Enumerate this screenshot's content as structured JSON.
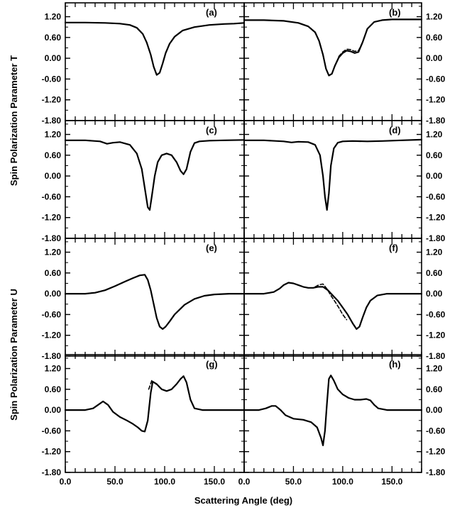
{
  "chart_data": {
    "type": "line",
    "xlabel": "Scattering Angle (deg)",
    "ylabel_top": "Spin Polarization Parameter T",
    "ylabel_bottom": "Spin Polarization Parameter U",
    "xlim": [
      0,
      180
    ],
    "ylim": [
      -1.8,
      1.6
    ],
    "x_ticks": [
      "0.0",
      "50.0",
      "100.0",
      "150.0"
    ],
    "x_tick_values": [
      0,
      50,
      100,
      150
    ],
    "y_ticks": [
      "1.20",
      "0.60",
      "0.00",
      "-0.60",
      "-1.20",
      "-1.80"
    ],
    "y_tick_values": [
      1.2,
      0.6,
      0.0,
      -0.6,
      -1.2,
      -1.8
    ],
    "panels": [
      {
        "label": "(a)",
        "series": [
          {
            "style": "solid",
            "x": [
              0,
              20,
              40,
              55,
              65,
              72,
              78,
              82,
              86,
              89,
              92,
              95,
              98,
              101,
              105,
              110,
              118,
              130,
              145,
              160,
              170,
              180
            ],
            "y": [
              1.03,
              1.03,
              1.02,
              1.0,
              0.96,
              0.88,
              0.7,
              0.45,
              0.1,
              -0.25,
              -0.48,
              -0.42,
              -0.15,
              0.15,
              0.42,
              0.62,
              0.8,
              0.9,
              0.96,
              0.99,
              1.0,
              1.02
            ]
          }
        ]
      },
      {
        "label": "(b)",
        "series": [
          {
            "style": "solid",
            "x": [
              0,
              20,
              40,
              55,
              65,
              72,
              76,
              80,
              83,
              86,
              89,
              92,
              96,
              100,
              104,
              108,
              112,
              116,
              120,
              125,
              132,
              140,
              150,
              165,
              180
            ],
            "y": [
              1.1,
              1.1,
              1.08,
              1.02,
              0.92,
              0.75,
              0.5,
              0.1,
              -0.3,
              -0.5,
              -0.45,
              -0.22,
              0.02,
              0.15,
              0.22,
              0.2,
              0.15,
              0.18,
              0.45,
              0.85,
              1.05,
              1.1,
              1.12,
              1.12,
              1.12
            ]
          },
          {
            "style": "dashed",
            "x": [
              96,
              100,
              104,
              108,
              112,
              116,
              120
            ],
            "y": [
              0.05,
              0.18,
              0.26,
              0.25,
              0.2,
              0.22,
              0.46
            ]
          }
        ]
      },
      {
        "label": "(c)",
        "series": [
          {
            "style": "solid",
            "x": [
              0,
              20,
              35,
              42,
              48,
              55,
              65,
              72,
              77,
              80,
              83,
              85,
              87,
              90,
              93,
              97,
              102,
              107,
              112,
              116,
              119,
              122,
              126,
              130,
              135,
              145,
              160,
              180
            ],
            "y": [
              1.03,
              1.03,
              1.0,
              0.93,
              0.96,
              0.98,
              0.9,
              0.65,
              0.2,
              -0.35,
              -0.9,
              -0.98,
              -0.6,
              0.0,
              0.4,
              0.6,
              0.65,
              0.6,
              0.4,
              0.15,
              0.05,
              0.2,
              0.7,
              0.95,
              1.0,
              1.02,
              1.03,
              1.04
            ]
          }
        ]
      },
      {
        "label": "(d)",
        "series": [
          {
            "style": "solid",
            "x": [
              0,
              20,
              40,
              48,
              55,
              65,
              72,
              77,
              80,
              82,
              84,
              86,
              88,
              91,
              95,
              100,
              110,
              125,
              140,
              160,
              180
            ],
            "y": [
              1.03,
              1.03,
              1.0,
              0.97,
              0.99,
              0.98,
              0.9,
              0.6,
              0.0,
              -0.6,
              -0.98,
              -0.5,
              0.3,
              0.8,
              0.96,
              1.0,
              1.01,
              1.0,
              1.01,
              1.03,
              1.05
            ]
          }
        ]
      },
      {
        "label": "(e)",
        "series": [
          {
            "style": "solid",
            "x": [
              0,
              20,
              30,
              40,
              50,
              60,
              68,
              75,
              80,
              83,
              86,
              89,
              92,
              95,
              98,
              101,
              105,
              110,
              120,
              130,
              140,
              150,
              165,
              180
            ],
            "y": [
              0.0,
              0.0,
              0.03,
              0.1,
              0.22,
              0.35,
              0.45,
              0.53,
              0.55,
              0.4,
              0.1,
              -0.3,
              -0.7,
              -0.95,
              -1.02,
              -0.95,
              -0.8,
              -0.6,
              -0.32,
              -0.15,
              -0.06,
              -0.02,
              0.0,
              0.0
            ]
          }
        ]
      },
      {
        "label": "(f)",
        "series": [
          {
            "style": "solid",
            "x": [
              0,
              20,
              30,
              36,
              40,
              45,
              50,
              55,
              60,
              65,
              70,
              75,
              80,
              85,
              90,
              95,
              100,
              105,
              110,
              114,
              117,
              120,
              124,
              128,
              135,
              145,
              160,
              180
            ],
            "y": [
              0.0,
              0.0,
              0.05,
              0.15,
              0.25,
              0.32,
              0.3,
              0.25,
              0.2,
              0.17,
              0.17,
              0.2,
              0.2,
              0.1,
              -0.05,
              -0.2,
              -0.4,
              -0.6,
              -0.85,
              -1.02,
              -0.95,
              -0.7,
              -0.4,
              -0.2,
              -0.05,
              0.0,
              0.0,
              0.0
            ]
          },
          {
            "style": "dashed",
            "x": [
              72,
              76,
              80,
              84,
              88,
              92,
              96,
              100,
              104
            ],
            "y": [
              0.2,
              0.26,
              0.28,
              0.14,
              -0.05,
              -0.22,
              -0.4,
              -0.6,
              -0.75
            ]
          }
        ]
      },
      {
        "label": "(g)",
        "series": [
          {
            "style": "solid",
            "x": [
              0,
              20,
              28,
              33,
              38,
              43,
              48,
              55,
              62,
              68,
              73,
              77,
              80,
              83,
              86,
              88,
              92,
              97,
              102,
              107,
              112,
              116,
              119,
              122,
              126,
              130,
              138,
              150,
              165,
              180
            ],
            "y": [
              0.0,
              0.0,
              0.05,
              0.15,
              0.25,
              0.15,
              -0.05,
              -0.2,
              -0.3,
              -0.4,
              -0.5,
              -0.6,
              -0.62,
              -0.3,
              0.5,
              0.82,
              0.75,
              0.6,
              0.55,
              0.6,
              0.75,
              0.9,
              0.98,
              0.8,
              0.3,
              0.05,
              0.0,
              0.0,
              0.0,
              0.0
            ]
          },
          {
            "style": "dashed",
            "x": [
              84,
              87,
              90,
              93,
              96
            ],
            "y": [
              0.6,
              0.85,
              0.78,
              0.72,
              0.62
            ]
          }
        ]
      },
      {
        "label": "(h)",
        "series": [
          {
            "style": "solid",
            "x": [
              0,
              15,
              22,
              28,
              32,
              37,
              42,
              50,
              60,
              68,
              74,
              78,
              80,
              82,
              84,
              86,
              88,
              91,
              95,
              100,
              106,
              112,
              118,
              124,
              128,
              132,
              136,
              145,
              160,
              180
            ],
            "y": [
              0.0,
              0.0,
              0.05,
              0.12,
              0.12,
              0.0,
              -0.15,
              -0.25,
              -0.28,
              -0.35,
              -0.5,
              -0.8,
              -1.02,
              -0.6,
              0.2,
              0.9,
              1.0,
              0.85,
              0.6,
              0.45,
              0.35,
              0.3,
              0.3,
              0.32,
              0.28,
              0.15,
              0.05,
              0.0,
              0.0,
              0.0
            ]
          }
        ]
      }
    ]
  }
}
